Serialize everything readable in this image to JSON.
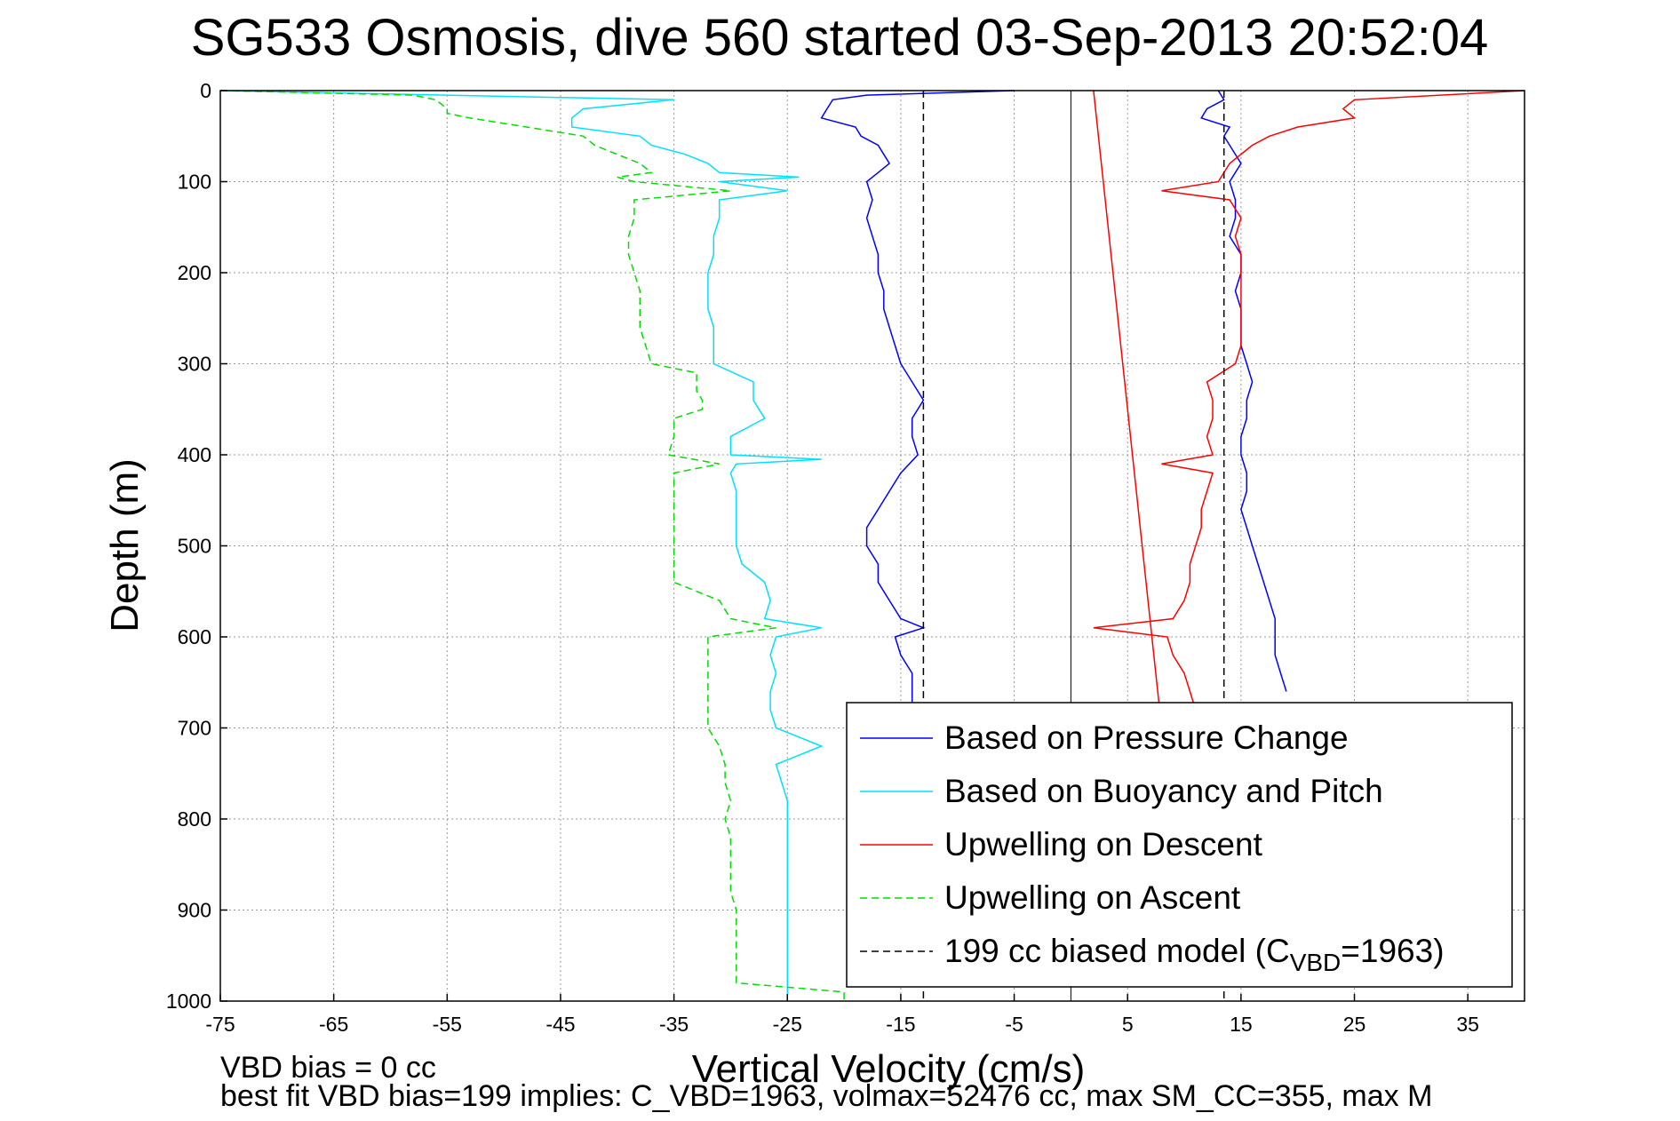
{
  "chart_data": {
    "type": "line",
    "title": "SG533 Osmosis, dive 560 started 03-Sep-2013 20:52:04",
    "xlabel": "Vertical Velocity (cm/s)",
    "ylabel": "Depth (m)",
    "xlim": [
      -75,
      40
    ],
    "ylim": [
      0,
      1000
    ],
    "y_reversed": true,
    "grid": true,
    "legend_position": "lower-right",
    "x_ticks": [
      "-75",
      "-65",
      "-55",
      "-45",
      "-35",
      "-25",
      "-15",
      "-5",
      "5",
      "15",
      "25",
      "35"
    ],
    "x_tick_values": [
      -75,
      -65,
      -55,
      -45,
      -35,
      -25,
      -15,
      -5,
      5,
      15,
      25,
      35
    ],
    "y_ticks": [
      "0",
      "100",
      "200",
      "300",
      "400",
      "500",
      "600",
      "700",
      "800",
      "900",
      "1000"
    ],
    "y_tick_values": [
      0,
      100,
      200,
      300,
      400,
      500,
      600,
      700,
      800,
      900,
      1000
    ],
    "zero_line_x": 0,
    "legend_labels": [
      "Based on Pressure Change",
      "Based on Buoyancy and Pitch",
      "Upwelling on Descent",
      "Upwelling on Ascent",
      "199 cc biased model (C"
    ],
    "legend_sub": "VBD",
    "legend_suffix": "=1963)",
    "series": [
      {
        "name": "Based on Pressure Change (ascent)",
        "color": "#0000ff",
        "style": "solid",
        "depth": [
          0,
          5,
          10,
          20,
          30,
          40,
          50,
          60,
          70,
          80,
          90,
          100,
          120,
          140,
          160,
          180,
          200,
          220,
          240,
          260,
          280,
          300,
          320,
          340,
          360,
          380,
          400,
          420,
          440,
          460,
          480,
          500,
          520,
          540,
          560,
          580,
          590,
          600,
          620,
          640,
          660,
          680
        ],
        "x": [
          -5,
          -18,
          -21,
          -21.5,
          -22,
          -19,
          -18.5,
          -17,
          -16.5,
          -16,
          -17,
          -18,
          -17.5,
          -18,
          -17.5,
          -17,
          -17,
          -16.5,
          -16.5,
          -16,
          -15.5,
          -15,
          -14,
          -13,
          -14,
          -14,
          -13.5,
          -15,
          -16,
          -17,
          -18,
          -18,
          -17,
          -17,
          -16,
          -15,
          -13,
          -15.5,
          -15,
          -14,
          -14,
          -14
        ]
      },
      {
        "name": "Based on Pressure Change (descent)",
        "color": "#0000ff",
        "style": "solid",
        "depth": [
          0,
          10,
          20,
          30,
          40,
          50,
          60,
          80,
          100,
          120,
          140,
          160,
          180,
          200,
          220,
          240,
          260,
          280,
          300,
          320,
          340,
          360,
          380,
          400,
          420,
          440,
          460,
          480,
          500,
          520,
          540,
          560,
          580,
          600,
          620,
          640,
          660
        ],
        "x": [
          13,
          13.5,
          12,
          11.5,
          14,
          13.5,
          14,
          15,
          14,
          14.5,
          14.5,
          14,
          15,
          15,
          14.5,
          15,
          15,
          15,
          15.5,
          16,
          15.5,
          15.5,
          15,
          15,
          15.5,
          15.5,
          15,
          15.5,
          16,
          16.5,
          17,
          17.5,
          18,
          18,
          18,
          18.5,
          19
        ]
      },
      {
        "name": "Based on Buoyancy and Pitch",
        "color": "#00e0ff",
        "style": "solid",
        "depth": [
          0,
          10,
          20,
          30,
          40,
          50,
          60,
          70,
          80,
          90,
          95,
          100,
          110,
          120,
          140,
          160,
          180,
          200,
          220,
          240,
          260,
          280,
          300,
          320,
          330,
          340,
          350,
          360,
          380,
          400,
          405,
          410,
          420,
          440,
          460,
          480,
          500,
          520,
          540,
          560,
          580,
          590,
          600,
          620,
          640,
          660,
          680,
          700,
          720,
          740,
          760,
          780,
          800,
          820,
          840,
          860,
          880,
          900,
          920,
          940,
          960,
          980,
          1000
        ],
        "x": [
          -75,
          -35,
          -43,
          -44,
          -44,
          -38,
          -37,
          -34,
          -32,
          -31,
          -24,
          -31,
          -25,
          -31,
          -31,
          -31.5,
          -31.5,
          -32,
          -32,
          -32,
          -31.5,
          -31.5,
          -31.5,
          -28,
          -28,
          -28,
          -27.5,
          -27,
          -30,
          -30,
          -22,
          -29.5,
          -30,
          -29.5,
          -29.5,
          -29.5,
          -29.5,
          -29,
          -27,
          -26.5,
          -27,
          -22,
          -26,
          -26.5,
          -26,
          -26.5,
          -26.5,
          -26,
          -22,
          -26,
          -25.5,
          -25,
          -25,
          -25,
          -25,
          -25,
          -25,
          -25,
          -25,
          -25,
          -25,
          -25,
          -25
        ]
      },
      {
        "name": "Upwelling on Descent",
        "color": "#ff0000",
        "style": "solid",
        "depth": [
          0,
          10,
          20,
          30,
          40,
          50,
          60,
          80,
          100,
          110,
          120,
          140,
          160,
          180,
          200,
          220,
          240,
          260,
          280,
          300,
          320,
          340,
          360,
          380,
          400,
          410,
          420,
          440,
          460,
          480,
          500,
          520,
          540,
          560,
          580,
          590,
          600,
          620,
          640,
          660,
          680,
          700
        ],
        "x": [
          40,
          25,
          24,
          25,
          20,
          17.5,
          16,
          14,
          13,
          8,
          14,
          15,
          14.5,
          15,
          15,
          15,
          15,
          15,
          15,
          14.5,
          12,
          12.5,
          12.5,
          12,
          12.5,
          8,
          12.5,
          12,
          11.5,
          11.5,
          11,
          10.5,
          10.5,
          10,
          9,
          2,
          8.5,
          9,
          10,
          10.5,
          11,
          11
        ]
      },
      {
        "name": "Upwelling on Ascent",
        "color": "#00dd00",
        "style": "dashed",
        "depth": [
          0,
          5,
          10,
          20,
          25,
          30,
          40,
          50,
          60,
          70,
          80,
          90,
          95,
          100,
          110,
          120,
          140,
          160,
          180,
          200,
          220,
          240,
          260,
          280,
          300,
          310,
          320,
          330,
          340,
          350,
          360,
          380,
          400,
          410,
          420,
          440,
          460,
          480,
          500,
          520,
          540,
          560,
          580,
          590,
          600,
          620,
          640,
          660,
          680,
          700,
          720,
          740,
          760,
          780,
          800,
          820,
          840,
          860,
          880,
          900,
          920,
          940,
          960,
          980,
          990,
          1000
        ],
        "x": [
          -75,
          -58,
          -56,
          -55,
          -55,
          -53,
          -48,
          -43,
          -42,
          -40,
          -38,
          -37,
          -40,
          -38.5,
          -30,
          -38.5,
          -38.5,
          -39,
          -39,
          -38.5,
          -38,
          -38,
          -38,
          -37.5,
          -37,
          -33,
          -33,
          -33,
          -32.5,
          -32.5,
          -35,
          -35,
          -35.5,
          -31,
          -35,
          -35,
          -35,
          -35,
          -35,
          -35,
          -35,
          -31,
          -30,
          -26,
          -32,
          -32,
          -32,
          -32,
          -32,
          -32,
          -31,
          -30.5,
          -30.5,
          -30,
          -30.5,
          -30,
          -30,
          -30,
          -30,
          -29.5,
          -29.5,
          -29.5,
          -29.5,
          -29.5,
          -20,
          -20
        ]
      },
      {
        "name": "199 cc biased model (descent)",
        "color": "#000000",
        "style": "dashed",
        "depth": [
          0,
          1000
        ],
        "x": [
          13.5,
          13.5
        ]
      },
      {
        "name": "199 cc biased model (ascent)",
        "color": "#000000",
        "style": "dashed",
        "depth": [
          0,
          1000
        ],
        "x": [
          -13,
          -13
        ]
      },
      {
        "name": "model slope line",
        "color": "#ff0000",
        "style": "solid",
        "depth": [
          0,
          700
        ],
        "x": [
          2,
          8
        ]
      }
    ]
  },
  "footer": {
    "line1": "VBD bias = 0 cc",
    "line2": "best fit VBD bias=199 implies: C_VBD=1963, volmax=52476 cc, max SM_CC=355, max M"
  }
}
